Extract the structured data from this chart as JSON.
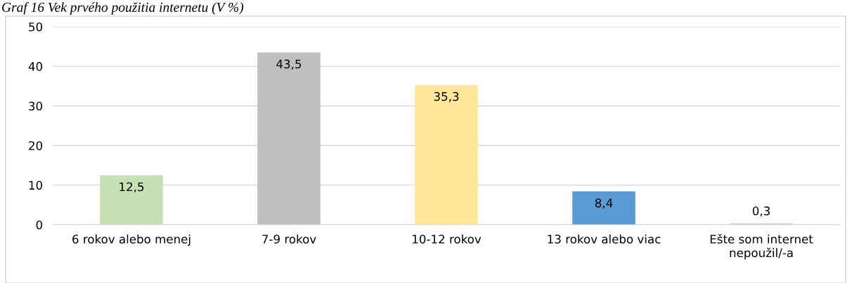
{
  "chart_data": {
    "type": "bar",
    "title": "Graf 16 Vek prvého použitia internetu (V %)",
    "categories": [
      "6 rokov alebo menej",
      "7-9 rokov",
      "10-12 rokov",
      "13 rokov alebo viac",
      "Ešte som internet\nnepoužil/-a"
    ],
    "values": [
      12.5,
      43.5,
      35.3,
      8.4,
      0.3
    ],
    "colors": [
      "#c5e0b4",
      "#bfbfbf",
      "#ffe699",
      "#5b9bd5",
      "#b4c7e7"
    ],
    "value_labels": [
      "12,5",
      "43,5",
      "35,3",
      "8,4",
      "0,3"
    ],
    "ylim": [
      0,
      50
    ],
    "yticks": [
      0,
      10,
      20,
      30,
      40,
      50
    ],
    "grid": "y",
    "legend": false
  }
}
